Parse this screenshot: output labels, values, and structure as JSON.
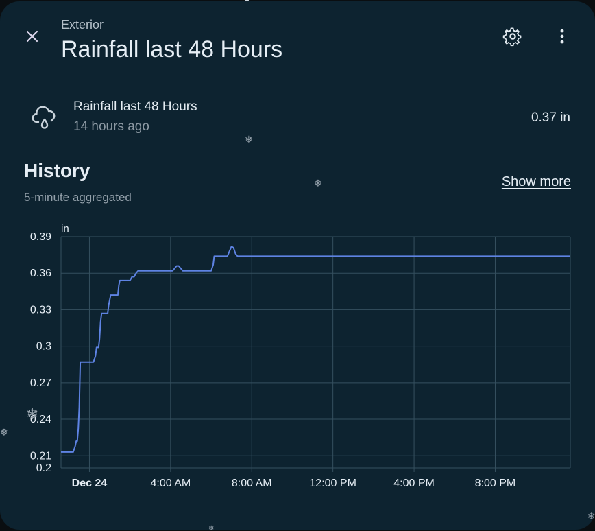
{
  "header": {
    "subtitle": "Exterior",
    "title": "Rainfall last 48 Hours",
    "close_icon": "close-icon",
    "settings_icon": "gear-icon",
    "menu_icon": "more-vert-icon"
  },
  "entity": {
    "icon": "weather-pouring-icon",
    "name": "Rainfall last 48 Hours",
    "last_changed": "14 hours ago",
    "value": "0.37 in"
  },
  "history": {
    "title": "History",
    "subtitle": "5-minute aggregated",
    "show_more": "Show more"
  },
  "colors": {
    "background": "#0d2330",
    "line": "#5e83e3",
    "grid": "#35505f",
    "text": "#e6eef5"
  },
  "chart_data": {
    "type": "line",
    "ylabel": "in",
    "ylim": [
      0.2,
      0.39
    ],
    "yticks": [
      "0.39",
      "0.36",
      "0.33",
      "0.3",
      "0.27",
      "0.24",
      "0.21",
      "0.2"
    ],
    "ytick_values": [
      0.39,
      0.36,
      0.33,
      0.3,
      0.27,
      0.24,
      0.21,
      0.2
    ],
    "xlim_hours": [
      -1.4,
      23.7
    ],
    "xticks": [
      {
        "label": "Dec 24",
        "hour": 0,
        "bold": true
      },
      {
        "label": "4:00 AM",
        "hour": 4
      },
      {
        "label": "8:00 AM",
        "hour": 8
      },
      {
        "label": "12:00 PM",
        "hour": 12
      },
      {
        "label": "4:00 PM",
        "hour": 16
      },
      {
        "label": "8:00 PM",
        "hour": 20
      }
    ],
    "grid": true,
    "series": [
      {
        "points": [
          [
            -1.4,
            0.213
          ],
          [
            -0.8,
            0.213
          ],
          [
            -0.7,
            0.218
          ],
          [
            -0.65,
            0.222
          ],
          [
            -0.6,
            0.222
          ],
          [
            -0.55,
            0.232
          ],
          [
            -0.5,
            0.25
          ],
          [
            -0.45,
            0.287
          ],
          [
            -0.3,
            0.287
          ],
          [
            0.2,
            0.287
          ],
          [
            0.3,
            0.292
          ],
          [
            0.35,
            0.299
          ],
          [
            0.45,
            0.299
          ],
          [
            0.5,
            0.306
          ],
          [
            0.55,
            0.32
          ],
          [
            0.6,
            0.327
          ],
          [
            0.9,
            0.327
          ],
          [
            0.95,
            0.334
          ],
          [
            1.05,
            0.342
          ],
          [
            1.4,
            0.342
          ],
          [
            1.45,
            0.35
          ],
          [
            1.5,
            0.354
          ],
          [
            2.0,
            0.354
          ],
          [
            2.1,
            0.357
          ],
          [
            2.2,
            0.357
          ],
          [
            2.3,
            0.36
          ],
          [
            2.4,
            0.362
          ],
          [
            3.6,
            0.362
          ],
          [
            4.1,
            0.362
          ],
          [
            4.2,
            0.364
          ],
          [
            4.3,
            0.366
          ],
          [
            4.4,
            0.366
          ],
          [
            4.5,
            0.364
          ],
          [
            4.6,
            0.362
          ],
          [
            6.0,
            0.362
          ],
          [
            6.1,
            0.367
          ],
          [
            6.15,
            0.374
          ],
          [
            6.8,
            0.374
          ],
          [
            6.9,
            0.378
          ],
          [
            7.0,
            0.382
          ],
          [
            7.1,
            0.381
          ],
          [
            7.2,
            0.376
          ],
          [
            7.3,
            0.374
          ],
          [
            10.0,
            0.374
          ],
          [
            16.0,
            0.374
          ],
          [
            23.7,
            0.374
          ]
        ]
      }
    ]
  }
}
